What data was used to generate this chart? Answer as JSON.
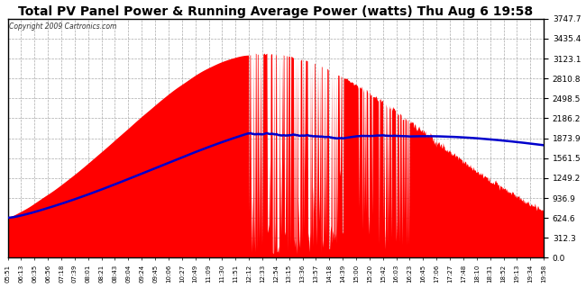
{
  "title": "Total PV Panel Power & Running Average Power (watts) Thu Aug 6 19:58",
  "copyright": "Copyright 2009 Cartronics.com",
  "ymax": 3747.7,
  "yticks": [
    0.0,
    312.3,
    624.6,
    936.9,
    1249.2,
    1561.5,
    1873.9,
    2186.2,
    2498.5,
    2810.8,
    3123.1,
    3435.4,
    3747.7
  ],
  "bg_color": "#ffffff",
  "panel_bg": "#ffffff",
  "grid_color": "#aaaaaa",
  "bar_color": "#ff0000",
  "avg_color": "#0000cc",
  "title_color": "#000000",
  "border_color": "#000000",
  "xtick_labels": [
    "05:51",
    "06:13",
    "06:35",
    "06:56",
    "07:18",
    "07:39",
    "08:01",
    "08:21",
    "08:43",
    "09:04",
    "09:24",
    "09:45",
    "10:06",
    "10:27",
    "10:49",
    "11:09",
    "11:30",
    "11:51",
    "12:12",
    "12:33",
    "12:54",
    "13:15",
    "13:36",
    "13:57",
    "14:18",
    "14:39",
    "15:00",
    "15:20",
    "15:42",
    "16:03",
    "16:23",
    "16:45",
    "17:06",
    "17:27",
    "17:48",
    "18:10",
    "18:31",
    "18:52",
    "19:13",
    "19:34",
    "19:58"
  ]
}
